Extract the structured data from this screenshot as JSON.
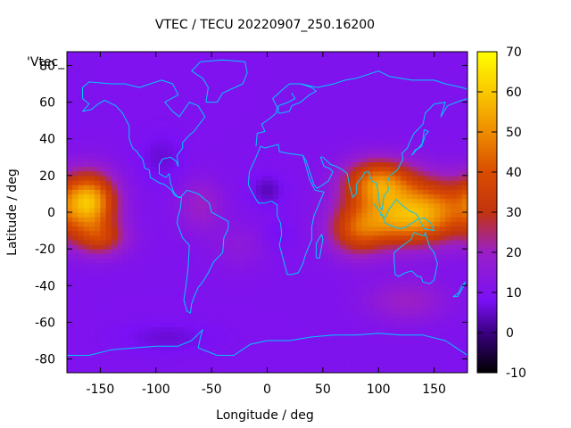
{
  "chart_data": {
    "type": "heatmap",
    "title": "VTEC / TECU 20220907_250.16200",
    "xlabel": "Longitude / deg",
    "ylabel": "Latitude / deg",
    "series_label": "'Vtec_",
    "xlim": [
      -180,
      180
    ],
    "ylim": [
      -87.5,
      87.5
    ],
    "x_ticks": [
      -150,
      -100,
      -50,
      0,
      50,
      100,
      150
    ],
    "y_ticks": [
      -80,
      -60,
      -40,
      -20,
      0,
      20,
      40,
      60,
      80
    ],
    "colorbar": {
      "range": [
        -10,
        70
      ],
      "ticks": [
        -10,
        0,
        10,
        20,
        30,
        40,
        50,
        60,
        70
      ],
      "palette_stops": [
        {
          "v": -10,
          "color": "#000000"
        },
        {
          "v": 0,
          "color": "#3a0080"
        },
        {
          "v": 8,
          "color": "#7a10f5"
        },
        {
          "v": 20,
          "color": "#9a1fc8"
        },
        {
          "v": 30,
          "color": "#c2340e"
        },
        {
          "v": 40,
          "color": "#d94c00"
        },
        {
          "v": 50,
          "color": "#ee8c00"
        },
        {
          "v": 60,
          "color": "#fac800"
        },
        {
          "v": 70,
          "color": "#ffff00"
        }
      ]
    },
    "background_vtec": 10,
    "features": [
      {
        "name": "pacific-crest",
        "lon": -160,
        "lat": 6,
        "amp": 45,
        "sx": 17,
        "sy": 11
      },
      {
        "name": "pacific-south",
        "lon": -150,
        "lat": -14,
        "amp": 20,
        "sx": 17,
        "sy": 7
      },
      {
        "name": "asia-crest-north",
        "lon": 100,
        "lat": 16,
        "amp": 38,
        "sx": 22,
        "sy": 9
      },
      {
        "name": "asia-crest-south",
        "lon": 115,
        "lat": -4,
        "amp": 30,
        "sx": 28,
        "sy": 10
      },
      {
        "name": "west-pacific-crest",
        "lon": 150,
        "lat": 2,
        "amp": 30,
        "sx": 26,
        "sy": 12
      },
      {
        "name": "indian-ocean",
        "lon": 80,
        "lat": -10,
        "amp": 22,
        "sx": 18,
        "sy": 10
      },
      {
        "name": "south-america",
        "lon": -60,
        "lat": 4,
        "amp": 10,
        "sx": 14,
        "sy": 10
      },
      {
        "name": "south-atlantic",
        "lon": -25,
        "lat": -18,
        "amp": 5,
        "sx": 18,
        "sy": 9
      },
      {
        "name": "australia-south",
        "lon": 125,
        "lat": -48,
        "amp": 10,
        "sx": 25,
        "sy": 8
      },
      {
        "name": "africa-depletion",
        "lon": 0,
        "lat": 12,
        "amp": -6,
        "sx": 10,
        "sy": 6
      },
      {
        "name": "west-africa-depletion",
        "lon": 10,
        "lat": -12,
        "amp": -3,
        "sx": 10,
        "sy": 6
      },
      {
        "name": "canada-depletion",
        "lon": -95,
        "lat": 30,
        "amp": -4,
        "sx": 15,
        "sy": 10
      },
      {
        "name": "antarctic-depletion",
        "lon": -90,
        "lat": -68,
        "amp": -4,
        "sx": 30,
        "sy": 6
      }
    ]
  }
}
